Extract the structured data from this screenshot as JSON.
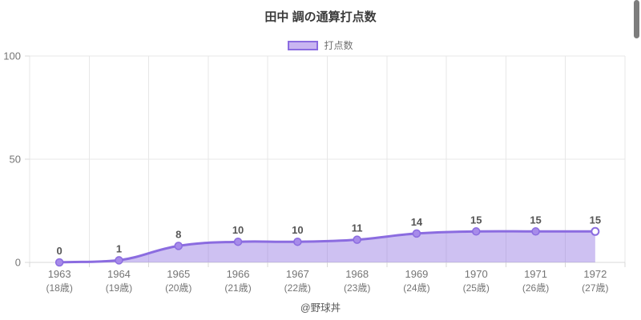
{
  "title": "田中 調の通算打点数",
  "legend": {
    "label": "打点数"
  },
  "footer": "@野球丼",
  "colors": {
    "line": "#8b6ce0",
    "marker_fill": "#a78bea",
    "marker_last_fill": "#ffffff",
    "area_fill": "rgba(139,108,224,0.42)",
    "legend_box_fill": "#c9b5f1",
    "grid": "#e7e7e7",
    "axis_line": "#d8d8d8",
    "value_label": "#565656",
    "tick_label": "#757575"
  },
  "chart_data": {
    "type": "area",
    "title": "田中 調の通算打点数",
    "series_name": "打点数",
    "categories": [
      "1963",
      "1964",
      "1965",
      "1966",
      "1967",
      "1968",
      "1969",
      "1970",
      "1971",
      "1972"
    ],
    "age_labels": [
      "(18歳)",
      "(19歳)",
      "(20歳)",
      "(21歳)",
      "(22歳)",
      "(23歳)",
      "(24歳)",
      "(25歳)",
      "(26歳)",
      "(27歳)"
    ],
    "values": [
      0,
      1,
      8,
      10,
      10,
      11,
      14,
      15,
      15,
      15
    ],
    "ylim": [
      0,
      100
    ],
    "yticks": [
      0,
      50,
      100
    ],
    "grid": true,
    "legend_position": "top",
    "xlabel": "",
    "ylabel": ""
  }
}
